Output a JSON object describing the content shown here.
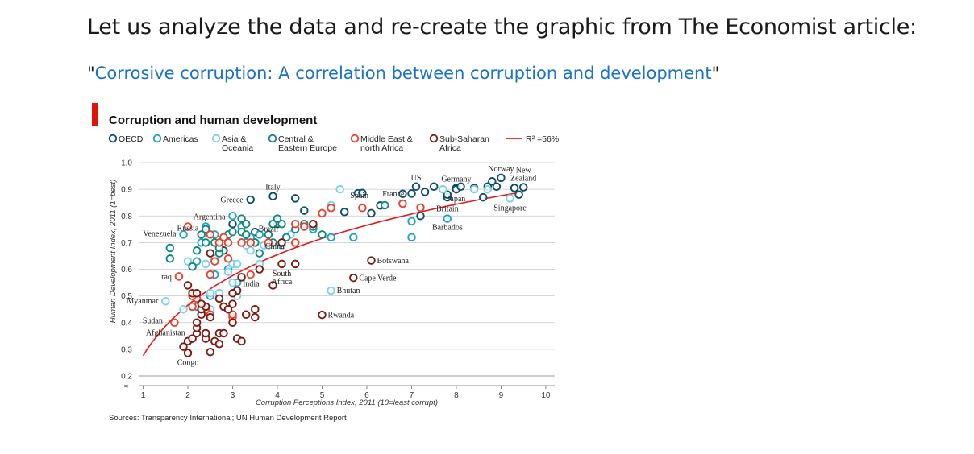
{
  "heading": "Let us analyze the data and re-create the graphic from The Economist article:",
  "subheading": {
    "quote_open": "\"",
    "link_text": "Corrosive corruption: A correlation between corruption and development",
    "quote_close": "\""
  },
  "colors": {
    "OECD": "#0e4d66",
    "Americas": "#1fa3c9",
    "Asia & Oceania": "#7fd1ec",
    "Central & Eastern Europe": "#11877e",
    "Middle East & north Africa": "#e8432c",
    "Sub-Saharan Africa": "#7a1b12",
    "trend": "#e31a1c",
    "accent_bar": "#e3120b",
    "link": "#1a73c8"
  },
  "chart_data": {
    "type": "scatter",
    "title": "Corruption and human development",
    "xlabel": "Corruption Perceptions Index, 2011 (10=least corrupt)",
    "ylabel": "Human Development Index, 2011 (1=best)",
    "xlim": [
      0.9,
      10.2
    ],
    "ylim": [
      0.2,
      1.0
    ],
    "x_ticks": [
      "1",
      "2",
      "3",
      "4",
      "5",
      "6",
      "7",
      "8",
      "9",
      "10"
    ],
    "y_ticks": [
      "0.2",
      "0.3",
      "0.4",
      "0.5",
      "0.6",
      "0.7",
      "0.8",
      "0.9",
      "1.0"
    ],
    "grid": "horizontal",
    "legend_position": "top",
    "source": "Sources: Transparency International; UN Human Development Report",
    "legend": [
      {
        "region": "OECD",
        "label": [
          "OECD"
        ]
      },
      {
        "region": "Americas",
        "label": [
          "Americas"
        ]
      },
      {
        "region": "Asia & Oceania",
        "label": [
          "Asia &",
          "Oceania"
        ]
      },
      {
        "region": "Central & Eastern Europe",
        "label": [
          "Central &",
          "Eastern Europe"
        ]
      },
      {
        "region": "Middle East & north Africa",
        "label": [
          "Middle East &",
          "north Africa"
        ]
      },
      {
        "region": "Sub-Saharan Africa",
        "label": [
          "Sub-Saharan",
          "Africa"
        ]
      }
    ],
    "trend": {
      "label": "R² =56%",
      "model": "log",
      "a": 0.2765,
      "b": 0.2728
    },
    "series": [
      {
        "name": "OECD",
        "points": [
          [
            3.4,
            0.861
          ],
          [
            3.9,
            0.874
          ],
          [
            4.4,
            0.866
          ],
          [
            4.6,
            0.82
          ],
          [
            5.5,
            0.815
          ],
          [
            6.1,
            0.81
          ],
          [
            6.3,
            0.839
          ],
          [
            6.8,
            0.883
          ],
          [
            5.8,
            0.885
          ],
          [
            5.9,
            0.886
          ],
          [
            7.0,
            0.884
          ],
          [
            7.1,
            0.91
          ],
          [
            7.5,
            0.91
          ],
          [
            7.3,
            0.89
          ],
          [
            7.8,
            0.87
          ],
          [
            7.8,
            0.88
          ],
          [
            8.0,
            0.905
          ],
          [
            8.0,
            0.9
          ],
          [
            8.1,
            0.91
          ],
          [
            8.4,
            0.905
          ],
          [
            8.6,
            0.87
          ],
          [
            8.7,
            0.91
          ],
          [
            8.8,
            0.93
          ],
          [
            8.9,
            0.91
          ],
          [
            9.0,
            0.943
          ],
          [
            9.3,
            0.905
          ],
          [
            9.4,
            0.88
          ],
          [
            9.5,
            0.908
          ],
          [
            7.2,
            0.8
          ],
          [
            4.0,
            0.77
          ],
          [
            2.8,
            0.67
          ],
          [
            3.0,
            0.77
          ],
          [
            3.5,
            0.74
          ]
        ]
      },
      {
        "name": "Americas",
        "points": [
          [
            1.9,
            0.73
          ],
          [
            2.3,
            0.7
          ],
          [
            2.4,
            0.76
          ],
          [
            2.6,
            0.73
          ],
          [
            2.8,
            0.72
          ],
          [
            3.0,
            0.8
          ],
          [
            3.2,
            0.76
          ],
          [
            3.3,
            0.7
          ],
          [
            3.4,
            0.72
          ],
          [
            3.5,
            0.7
          ],
          [
            3.0,
            0.62
          ],
          [
            2.6,
            0.58
          ],
          [
            2.7,
            0.51
          ],
          [
            2.5,
            0.5
          ],
          [
            2.2,
            0.46
          ],
          [
            2.2,
            0.63
          ],
          [
            4.0,
            0.78
          ],
          [
            4.8,
            0.75
          ],
          [
            5.2,
            0.72
          ],
          [
            5.7,
            0.72
          ],
          [
            7.0,
            0.78
          ],
          [
            7.0,
            0.72
          ],
          [
            7.8,
            0.79
          ],
          [
            3.1,
            0.55
          ],
          [
            2.9,
            0.6
          ],
          [
            3.6,
            0.73
          ]
        ]
      },
      {
        "name": "Asia & Oceania",
        "points": [
          [
            1.5,
            0.48
          ],
          [
            2.0,
            0.63
          ],
          [
            2.5,
            0.51
          ],
          [
            2.5,
            0.45
          ],
          [
            2.7,
            0.51
          ],
          [
            2.9,
            0.59
          ],
          [
            3.0,
            0.62
          ],
          [
            3.1,
            0.62
          ],
          [
            3.1,
            0.5
          ],
          [
            3.3,
            0.69
          ],
          [
            3.4,
            0.67
          ],
          [
            3.7,
            0.69
          ],
          [
            3.8,
            0.69
          ],
          [
            4.1,
            0.69
          ],
          [
            4.3,
            0.73
          ],
          [
            4.0,
            0.78
          ],
          [
            5.2,
            0.84
          ],
          [
            5.4,
            0.9
          ],
          [
            7.7,
            0.9
          ],
          [
            8.4,
            0.9
          ],
          [
            8.7,
            0.9
          ],
          [
            9.2,
            0.866
          ],
          [
            5.2,
            0.52
          ],
          [
            2.4,
            0.62
          ],
          [
            3.0,
            0.55
          ],
          [
            3.6,
            0.62
          ],
          [
            2.6,
            0.64
          ],
          [
            1.9,
            0.45
          ]
        ]
      },
      {
        "name": "Central & Eastern Europe",
        "points": [
          [
            1.6,
            0.68
          ],
          [
            1.6,
            0.64
          ],
          [
            2.1,
            0.61
          ],
          [
            2.3,
            0.73
          ],
          [
            2.4,
            0.75
          ],
          [
            2.4,
            0.7
          ],
          [
            2.6,
            0.7
          ],
          [
            2.7,
            0.66
          ],
          [
            2.9,
            0.73
          ],
          [
            3.0,
            0.74
          ],
          [
            3.2,
            0.74
          ],
          [
            3.3,
            0.77
          ],
          [
            3.3,
            0.73
          ],
          [
            3.5,
            0.7
          ],
          [
            3.8,
            0.73
          ],
          [
            3.9,
            0.77
          ],
          [
            4.0,
            0.79
          ],
          [
            4.1,
            0.77
          ],
          [
            4.2,
            0.72
          ],
          [
            4.4,
            0.75
          ],
          [
            4.6,
            0.77
          ],
          [
            4.8,
            0.76
          ],
          [
            5.0,
            0.73
          ],
          [
            6.4,
            0.84
          ],
          [
            3.6,
            0.66
          ],
          [
            2.2,
            0.67
          ],
          [
            2.7,
            0.68
          ],
          [
            3.2,
            0.79
          ],
          [
            3.9,
            0.7
          ]
        ]
      },
      {
        "name": "Middle East & north Africa",
        "points": [
          [
            1.8,
            0.573
          ],
          [
            2.0,
            0.76
          ],
          [
            1.7,
            0.4
          ],
          [
            2.1,
            0.46
          ],
          [
            2.2,
            0.49
          ],
          [
            2.4,
            0.45
          ],
          [
            2.5,
            0.58
          ],
          [
            2.5,
            0.73
          ],
          [
            2.6,
            0.63
          ],
          [
            2.7,
            0.7
          ],
          [
            2.8,
            0.72
          ],
          [
            2.9,
            0.64
          ],
          [
            2.9,
            0.7
          ],
          [
            3.2,
            0.7
          ],
          [
            3.4,
            0.7
          ],
          [
            3.4,
            0.58
          ],
          [
            3.8,
            0.7
          ],
          [
            4.4,
            0.77
          ],
          [
            4.4,
            0.7
          ],
          [
            4.6,
            0.76
          ],
          [
            4.8,
            0.77
          ],
          [
            5.0,
            0.81
          ],
          [
            5.2,
            0.83
          ],
          [
            5.9,
            0.83
          ],
          [
            6.8,
            0.846
          ],
          [
            7.2,
            0.831
          ],
          [
            3.0,
            0.42
          ],
          [
            3.0,
            0.43
          ],
          [
            2.1,
            0.5
          ],
          [
            2.5,
            0.43
          ]
        ]
      },
      {
        "name": "Sub-Saharan Africa",
        "points": [
          [
            2.0,
            0.286
          ],
          [
            1.9,
            0.31
          ],
          [
            2.0,
            0.33
          ],
          [
            2.1,
            0.34
          ],
          [
            2.2,
            0.36
          ],
          [
            2.2,
            0.38
          ],
          [
            2.2,
            0.4
          ],
          [
            2.0,
            0.54
          ],
          [
            2.1,
            0.51
          ],
          [
            2.2,
            0.51
          ],
          [
            2.3,
            0.43
          ],
          [
            2.3,
            0.45
          ],
          [
            2.4,
            0.46
          ],
          [
            2.4,
            0.34
          ],
          [
            2.4,
            0.36
          ],
          [
            2.5,
            0.42
          ],
          [
            2.5,
            0.29
          ],
          [
            2.6,
            0.33
          ],
          [
            2.7,
            0.36
          ],
          [
            2.7,
            0.32
          ],
          [
            2.8,
            0.36
          ],
          [
            2.8,
            0.46
          ],
          [
            2.9,
            0.45
          ],
          [
            3.0,
            0.4
          ],
          [
            3.0,
            0.47
          ],
          [
            3.1,
            0.52
          ],
          [
            3.0,
            0.51
          ],
          [
            3.1,
            0.34
          ],
          [
            3.2,
            0.33
          ],
          [
            3.3,
            0.43
          ],
          [
            3.5,
            0.42
          ],
          [
            3.5,
            0.45
          ],
          [
            3.6,
            0.6
          ],
          [
            3.9,
            0.54
          ],
          [
            4.1,
            0.62
          ],
          [
            4.1,
            0.7
          ],
          [
            4.4,
            0.62
          ],
          [
            4.8,
            0.77
          ],
          [
            5.0,
            0.429
          ],
          [
            5.7,
            0.568
          ],
          [
            6.1,
            0.633
          ],
          [
            2.3,
            0.47
          ],
          [
            2.7,
            0.49
          ],
          [
            3.2,
            0.57
          ],
          [
            2.5,
            0.66
          ]
        ]
      }
    ],
    "annotations": [
      {
        "text": "Russia",
        "x": 2.4,
        "y": 0.755,
        "pos": "l"
      },
      {
        "text": "Argentina",
        "x": 3.0,
        "y": 0.797,
        "pos": "l"
      },
      {
        "text": "Greece",
        "x": 3.4,
        "y": 0.861,
        "pos": "l"
      },
      {
        "text": "Italy",
        "x": 3.9,
        "y": 0.874,
        "pos": "t"
      },
      {
        "text": "Brazil",
        "x": 3.8,
        "y": 0.718,
        "pos": "t"
      },
      {
        "text": "Venezuela",
        "x": 1.9,
        "y": 0.735,
        "pos": "l"
      },
      {
        "text": "China",
        "x": 3.6,
        "y": 0.687,
        "pos": "r"
      },
      {
        "text": "Spain",
        "x": 6.2,
        "y": 0.878,
        "pos": "l"
      },
      {
        "text": "France",
        "x": 7.0,
        "y": 0.884,
        "pos": "l"
      },
      {
        "text": "US",
        "x": 7.1,
        "y": 0.91,
        "pos": "t"
      },
      {
        "text": "Germany",
        "x": 8.0,
        "y": 0.905,
        "pos": "t"
      },
      {
        "text": "Norway",
        "x": 9.0,
        "y": 0.943,
        "pos": "t"
      },
      {
        "text": "New Zealand",
        "x": 9.5,
        "y": 0.908,
        "pos": "t"
      },
      {
        "text": "Britain",
        "x": 7.8,
        "y": 0.863,
        "pos": "b"
      },
      {
        "text": "Japan",
        "x": 8.0,
        "y": 0.901,
        "pos": "b"
      },
      {
        "text": "Singapore",
        "x": 9.2,
        "y": 0.866,
        "pos": "b"
      },
      {
        "text": "Barbados",
        "x": 7.8,
        "y": 0.793,
        "pos": "b"
      },
      {
        "text": "Botswana",
        "x": 6.1,
        "y": 0.633,
        "pos": "r"
      },
      {
        "text": "Iraq",
        "x": 1.8,
        "y": 0.573,
        "pos": "l"
      },
      {
        "text": "South Africa",
        "x": 4.1,
        "y": 0.619,
        "pos": "b"
      },
      {
        "text": "India",
        "x": 3.1,
        "y": 0.547,
        "pos": "r"
      },
      {
        "text": "Cape Verde",
        "x": 5.7,
        "y": 0.568,
        "pos": "r"
      },
      {
        "text": "Bhutan",
        "x": 5.2,
        "y": 0.522,
        "pos": "r"
      },
      {
        "text": "Myanmar",
        "x": 1.5,
        "y": 0.483,
        "pos": "l"
      },
      {
        "text": "Rwanda",
        "x": 5.0,
        "y": 0.429,
        "pos": "r"
      },
      {
        "text": "Sudan",
        "x": 1.6,
        "y": 0.408,
        "pos": "l"
      },
      {
        "text": "Afghanistan",
        "x": 1.5,
        "y": 0.398,
        "pos": "b"
      },
      {
        "text": "Congo",
        "x": 2.0,
        "y": 0.286,
        "pos": "b"
      }
    ]
  }
}
